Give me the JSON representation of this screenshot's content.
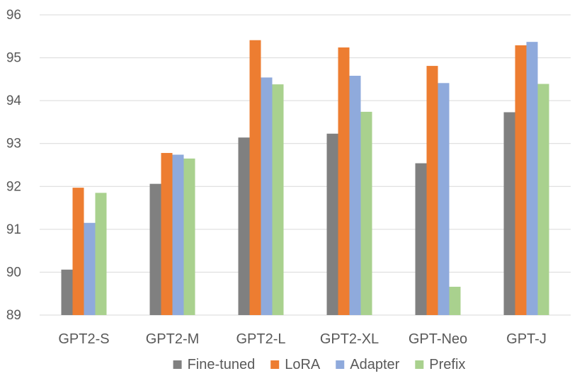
{
  "chart_data": {
    "type": "bar",
    "title": "",
    "xlabel": "",
    "ylabel": "",
    "ylim": [
      89,
      96
    ],
    "yticks": [
      89,
      90,
      91,
      92,
      93,
      94,
      95,
      96
    ],
    "grid": true,
    "legend_position": "bottom",
    "categories": [
      "GPT2-S",
      "GPT2-M",
      "GPT2-L",
      "GPT2-XL",
      "GPT-Neo",
      "GPT-J"
    ],
    "series": [
      {
        "name": "Fine-tuned",
        "color": "#808080",
        "values": [
          90.06,
          92.06,
          93.14,
          93.23,
          92.54,
          93.73
        ]
      },
      {
        "name": "LoRA",
        "color": "#ED7D31",
        "values": [
          91.97,
          92.78,
          95.41,
          95.24,
          94.81,
          95.29
        ]
      },
      {
        "name": "Adapter",
        "color": "#8FAADC",
        "values": [
          91.15,
          92.74,
          94.54,
          94.58,
          94.41,
          95.37
        ]
      },
      {
        "name": "Prefix",
        "color": "#A9D18E",
        "values": [
          91.85,
          92.65,
          94.38,
          93.74,
          89.66,
          94.39
        ]
      }
    ]
  }
}
